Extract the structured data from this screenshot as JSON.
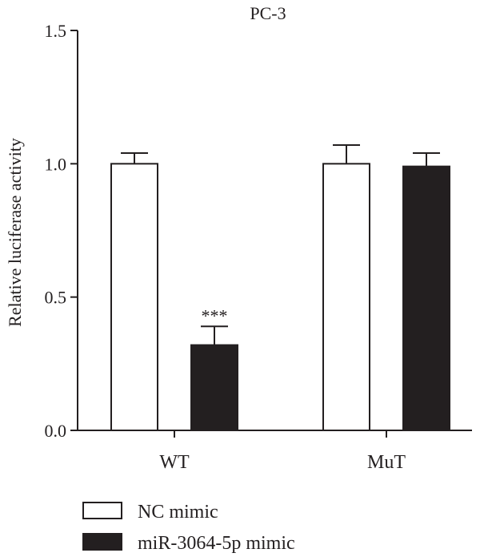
{
  "chart_data": {
    "type": "bar",
    "title": "PC-3",
    "xlabel": "",
    "ylabel": "Relative luciferase activity",
    "ylim": [
      0,
      1.5
    ],
    "yticks": [
      0.0,
      0.5,
      1.0,
      1.5
    ],
    "ytick_labels": [
      "0.0",
      "0.5",
      "1.0",
      "1.5"
    ],
    "categories": [
      "WT",
      "MuT"
    ],
    "series": [
      {
        "name": "NC mimic",
        "color": "#ffffff",
        "values": [
          1.0,
          1.0
        ],
        "errors": [
          0.04,
          0.07
        ]
      },
      {
        "name": "miR-3064-5p mimic",
        "color": "#231f20",
        "values": [
          0.32,
          0.99
        ],
        "errors": [
          0.07,
          0.05
        ]
      }
    ],
    "annotations": [
      {
        "category": "WT",
        "series": "miR-3064-5p mimic",
        "text": "***"
      }
    ],
    "grid": false,
    "legend_position": "bottom-left"
  }
}
